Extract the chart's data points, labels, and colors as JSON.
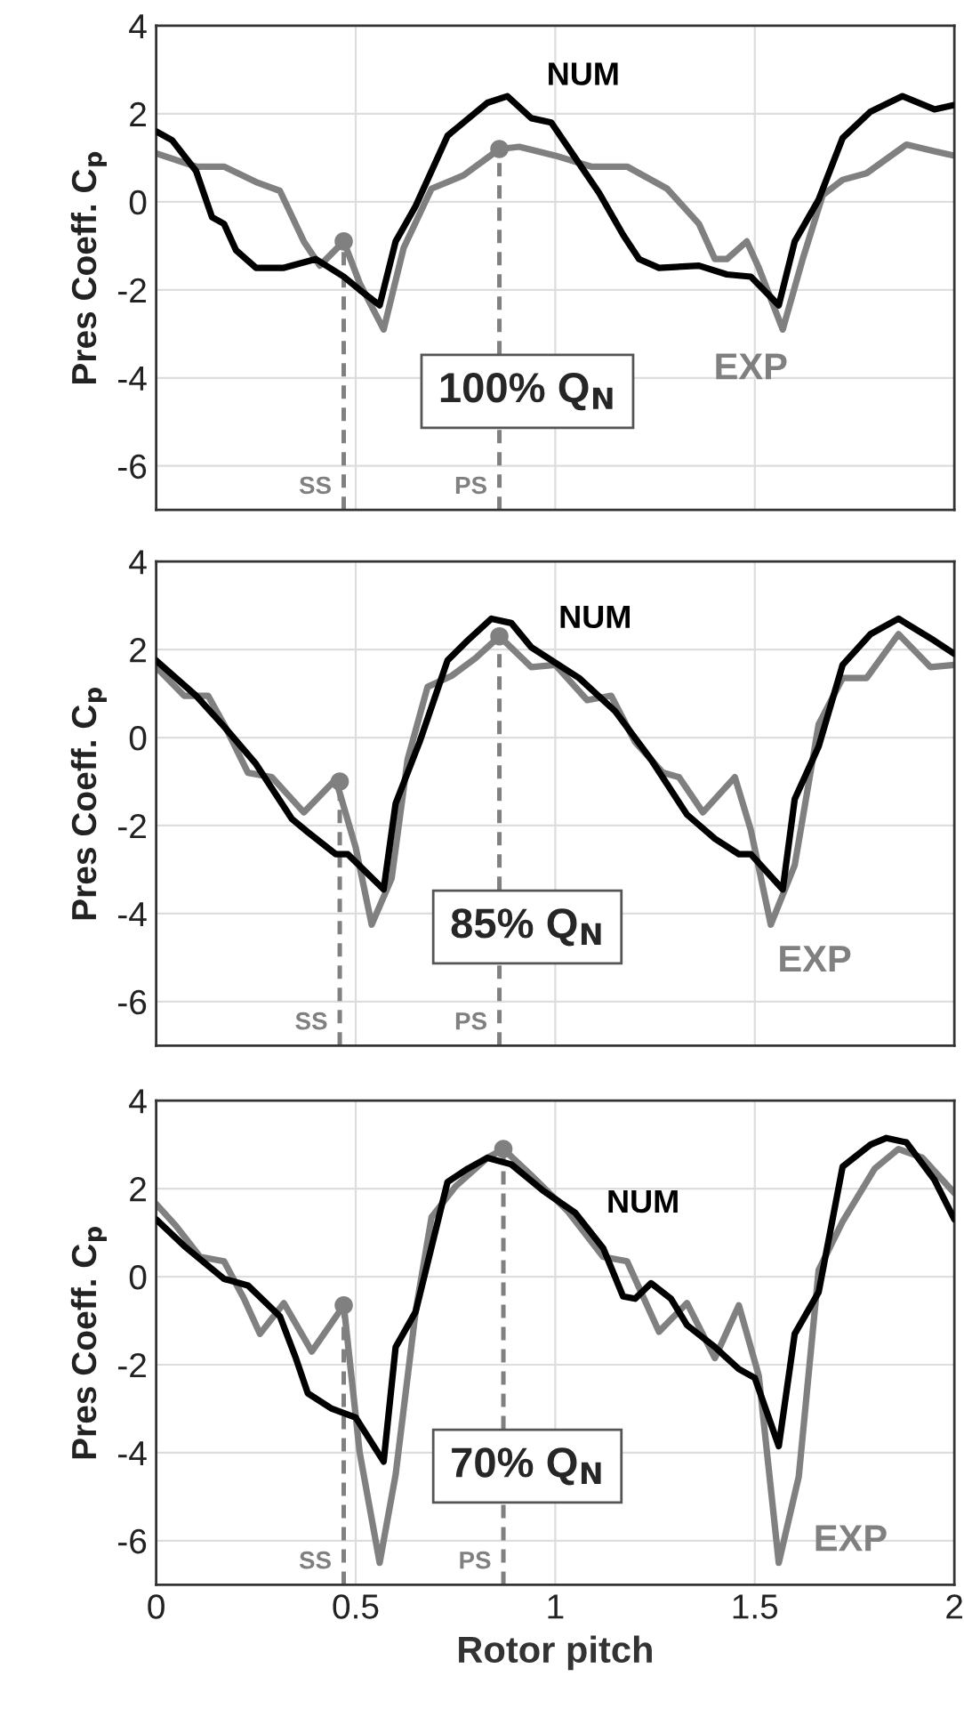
{
  "chart_data": [
    {
      "type": "line",
      "ylabel": "Pres Coeff. C$_{p}$",
      "xlim": [
        0,
        2
      ],
      "ylim": [
        -7,
        4
      ],
      "xticks": [
        0,
        0.5,
        1,
        1.5,
        2
      ],
      "yticks": [
        -6,
        -4,
        -2,
        0,
        2,
        4
      ],
      "grid": true,
      "tick_labels": "y",
      "series": [
        {
          "name": "NUM",
          "color": "#000000",
          "x": [
            0,
            0.04,
            0.1,
            0.14,
            0.17,
            0.2,
            0.25,
            0.32,
            0.4,
            0.47,
            0.51,
            0.56,
            0.6,
            0.65,
            0.73,
            0.83,
            0.88,
            0.94,
            0.99,
            1.05,
            1.11,
            1.17,
            1.21,
            1.26,
            1.36,
            1.43,
            1.49,
            1.56,
            1.6,
            1.66,
            1.72,
            1.79,
            1.87,
            1.95,
            2
          ],
          "values": [
            1.6,
            1.4,
            0.7,
            -0.35,
            -0.5,
            -1.1,
            -1.5,
            -1.5,
            -1.3,
            -1.7,
            -2.0,
            -2.35,
            -0.9,
            -0.1,
            1.5,
            2.25,
            2.4,
            1.9,
            1.8,
            1.0,
            0.2,
            -0.75,
            -1.3,
            -1.5,
            -1.45,
            -1.65,
            -1.7,
            -2.35,
            -0.9,
            0.05,
            1.45,
            2.05,
            2.4,
            2.1,
            2.2
          ]
        },
        {
          "name": "EXP",
          "color": "#808080",
          "x": [
            0,
            0.1,
            0.17,
            0.25,
            0.31,
            0.37,
            0.41,
            0.47,
            0.51,
            0.57,
            0.62,
            0.69,
            0.77,
            0.86,
            0.91,
            1.0,
            1.09,
            1.18,
            1.28,
            1.36,
            1.4,
            1.43,
            1.48,
            1.51,
            1.57,
            1.62,
            1.67,
            1.72,
            1.78,
            1.88,
            1.95,
            2
          ],
          "values": [
            1.1,
            0.8,
            0.8,
            0.45,
            0.25,
            -0.9,
            -1.45,
            -0.9,
            -1.85,
            -2.9,
            -1.05,
            0.3,
            0.6,
            1.2,
            1.25,
            1.05,
            0.8,
            0.8,
            0.3,
            -0.5,
            -1.3,
            -1.3,
            -0.9,
            -1.5,
            -2.9,
            -1.3,
            0.15,
            0.5,
            0.65,
            1.3,
            1.15,
            1.05
          ]
        },
        {
          "type": "scatter",
          "color": "#808080",
          "x": [
            0.47,
            0.86
          ],
          "values": [
            -0.9,
            1.2
          ]
        }
      ],
      "ref_lines": [
        {
          "axis": "x",
          "value": 0.47,
          "label": "SS",
          "color": "#808080",
          "line_style": "dashed"
        },
        {
          "axis": "x",
          "value": 0.86,
          "label": "PS",
          "color": "#808080",
          "line_style": "dashed"
        }
      ],
      "annotations": [
        "100% Q$_{N}$"
      ]
    },
    {
      "type": "line",
      "ylabel": "Pres Coeff. C$_{p}$",
      "xlim": [
        0,
        2
      ],
      "ylim": [
        -7,
        4
      ],
      "xticks": [
        0,
        0.5,
        1,
        1.5,
        2
      ],
      "yticks": [
        -6,
        -4,
        -2,
        0,
        2,
        4
      ],
      "grid": true,
      "tick_labels": "y",
      "series": [
        {
          "name": "NUM",
          "color": "#000000",
          "x": [
            0,
            0.1,
            0.17,
            0.25,
            0.34,
            0.38,
            0.45,
            0.48,
            0.57,
            0.6,
            0.66,
            0.73,
            0.78,
            0.84,
            0.89,
            0.94,
            1.06,
            1.15,
            1.24,
            1.33,
            1.4,
            1.46,
            1.49,
            1.57,
            1.6,
            1.66,
            1.72,
            1.79,
            1.86,
            1.95,
            2
          ],
          "values": [
            1.75,
            0.95,
            0.25,
            -0.6,
            -1.85,
            -2.15,
            -2.65,
            -2.65,
            -3.45,
            -1.5,
            -0.1,
            1.75,
            2.2,
            2.7,
            2.6,
            2.05,
            1.35,
            0.6,
            -0.5,
            -1.75,
            -2.3,
            -2.65,
            -2.65,
            -3.45,
            -1.4,
            -0.2,
            1.65,
            2.35,
            2.7,
            2.2,
            1.9
          ]
        },
        {
          "name": "EXP",
          "color": "#808080",
          "x": [
            0,
            0.07,
            0.13,
            0.17,
            0.23,
            0.29,
            0.37,
            0.45,
            0.5,
            0.54,
            0.59,
            0.63,
            0.68,
            0.74,
            0.8,
            0.86,
            0.94,
            1.0,
            1.08,
            1.14,
            1.2,
            1.27,
            1.31,
            1.37,
            1.45,
            1.49,
            1.54,
            1.6,
            1.66,
            1.72,
            1.78,
            1.86,
            1.94,
            2
          ],
          "values": [
            1.6,
            0.95,
            0.95,
            0.3,
            -0.8,
            -0.9,
            -1.7,
            -0.95,
            -2.5,
            -4.25,
            -3.2,
            -0.5,
            1.15,
            1.4,
            1.8,
            2.3,
            1.6,
            1.65,
            0.85,
            0.95,
            -0.1,
            -0.8,
            -0.9,
            -1.7,
            -0.9,
            -2.1,
            -4.25,
            -2.9,
            0.3,
            1.35,
            1.35,
            2.35,
            1.6,
            1.65
          ]
        },
        {
          "type": "scatter",
          "color": "#808080",
          "x": [
            0.46,
            0.86
          ],
          "values": [
            -1.0,
            2.3
          ]
        }
      ],
      "ref_lines": [
        {
          "axis": "x",
          "value": 0.46,
          "label": "SS",
          "color": "#808080",
          "line_style": "dashed"
        },
        {
          "axis": "x",
          "value": 0.86,
          "label": "PS",
          "color": "#808080",
          "line_style": "dashed"
        }
      ],
      "annotations": [
        "85% Q$_{N}$"
      ]
    },
    {
      "type": "line",
      "xlabel": "Rotor pitch",
      "ylabel": "Pres Coeff. C$_{p}$",
      "xlim": [
        0,
        2
      ],
      "ylim": [
        -7,
        4
      ],
      "xticks": [
        0,
        0.5,
        1,
        1.5,
        2
      ],
      "yticks": [
        -6,
        -4,
        -2,
        0,
        2,
        4
      ],
      "grid": true,
      "series": [
        {
          "name": "NUM",
          "color": "#000000",
          "x": [
            0,
            0.07,
            0.13,
            0.17,
            0.23,
            0.31,
            0.35,
            0.38,
            0.44,
            0.5,
            0.57,
            0.6,
            0.65,
            0.73,
            0.78,
            0.83,
            0.89,
            0.97,
            1.05,
            1.12,
            1.17,
            1.2,
            1.24,
            1.29,
            1.33,
            1.4,
            1.46,
            1.5,
            1.56,
            1.6,
            1.66,
            1.72,
            1.79,
            1.83,
            1.88,
            1.95,
            2
          ],
          "values": [
            1.3,
            0.7,
            0.25,
            -0.05,
            -0.2,
            -0.9,
            -1.85,
            -2.65,
            -3.0,
            -3.2,
            -4.2,
            -1.6,
            -0.8,
            2.15,
            2.45,
            2.7,
            2.55,
            1.95,
            1.45,
            0.65,
            -0.45,
            -0.5,
            -0.15,
            -0.5,
            -1.1,
            -1.6,
            -2.1,
            -2.3,
            -3.85,
            -1.3,
            -0.35,
            2.5,
            3.0,
            3.15,
            3.05,
            2.2,
            1.3
          ]
        },
        {
          "name": "EXP",
          "color": "#808080",
          "x": [
            0,
            0.05,
            0.11,
            0.17,
            0.22,
            0.26,
            0.32,
            0.39,
            0.47,
            0.51,
            0.56,
            0.6,
            0.65,
            0.69,
            0.75,
            0.83,
            0.87,
            0.94,
            1.03,
            1.12,
            1.18,
            1.26,
            1.33,
            1.4,
            1.46,
            1.51,
            1.56,
            1.61,
            1.66,
            1.72,
            1.8,
            1.86,
            1.92,
            2
          ],
          "values": [
            1.65,
            1.15,
            0.45,
            0.35,
            -0.5,
            -1.3,
            -0.6,
            -1.7,
            -0.65,
            -4.0,
            -6.5,
            -4.5,
            -0.8,
            1.35,
            2.05,
            2.7,
            2.9,
            2.3,
            1.5,
            0.45,
            0.35,
            -1.25,
            -0.6,
            -1.85,
            -0.65,
            -2.25,
            -6.5,
            -4.55,
            0.15,
            1.25,
            2.45,
            2.9,
            2.7,
            1.9
          ]
        },
        {
          "type": "scatter",
          "color": "#808080",
          "x": [
            0.47,
            0.87
          ],
          "values": [
            -0.65,
            2.9
          ]
        }
      ],
      "ref_lines": [
        {
          "axis": "x",
          "value": 0.47,
          "label": "SS",
          "color": "#808080",
          "line_style": "dashed"
        },
        {
          "axis": "x",
          "value": 0.87,
          "label": "PS",
          "color": "#808080",
          "line_style": "dashed"
        }
      ],
      "annotations": [
        "70% Q$_{N}$"
      ]
    }
  ]
}
